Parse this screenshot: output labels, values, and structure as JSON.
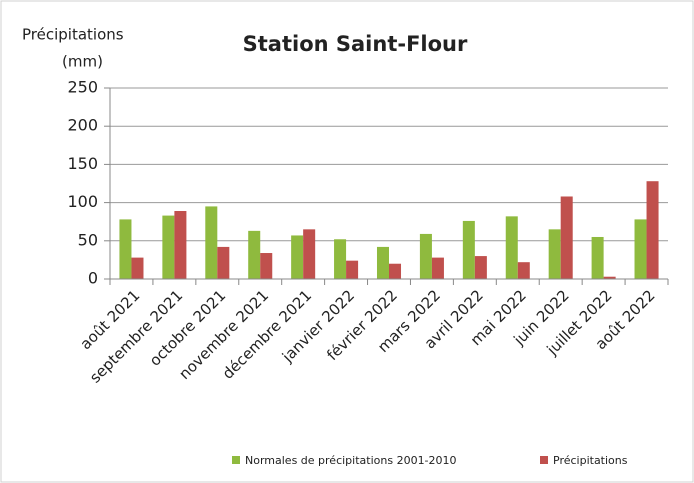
{
  "chart_data": {
    "type": "bar",
    "title": "Station Saint-Flour",
    "ylabel_lines": [
      "Précipitations",
      "(mm)"
    ],
    "categories": [
      "août 2021",
      "septembre 2021",
      "octobre 2021",
      "novembre 2021",
      "décembre 2021",
      "janvier 2022",
      "février 2022",
      "mars 2022",
      "avril 2022",
      "mai 2022",
      "juin 2022",
      "juillet 2022",
      "août 2022"
    ],
    "series": [
      {
        "name": "Normales de précipitations 2001-2010",
        "color": "#8fba3e",
        "values": [
          78,
          83,
          95,
          63,
          57,
          52,
          42,
          59,
          76,
          82,
          65,
          55,
          78
        ]
      },
      {
        "name": "Précipitations",
        "color": "#c0504d",
        "values": [
          28,
          89,
          42,
          34,
          65,
          24,
          20,
          28,
          30,
          22,
          108,
          3,
          128
        ]
      }
    ],
    "ylim": [
      0,
      250
    ],
    "yticks": [
      0,
      50,
      100,
      150,
      200,
      250
    ],
    "grid": true,
    "legend": "bottom"
  }
}
